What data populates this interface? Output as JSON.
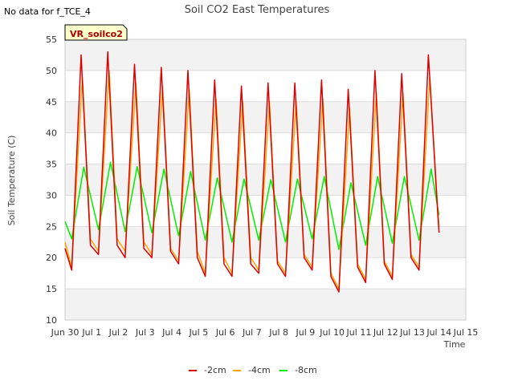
{
  "chart_data": {
    "type": "line",
    "title": "Soil CO2 East Temperatures",
    "corner_note": "No data for f_TCE_4",
    "station_label": "VR_soilco2",
    "xlabel": "Time",
    "ylabel": "Soil Temperature (C)",
    "xlim": [
      0,
      15
    ],
    "ylim": [
      10,
      55
    ],
    "x_ticks": [
      {
        "v": 0,
        "label": "Jun 30"
      },
      {
        "v": 1,
        "label": "Jul 1"
      },
      {
        "v": 2,
        "label": "Jul 2"
      },
      {
        "v": 3,
        "label": "Jul 3"
      },
      {
        "v": 4,
        "label": "Jul 4"
      },
      {
        "v": 5,
        "label": "Jul 5"
      },
      {
        "v": 6,
        "label": "Jul 6"
      },
      {
        "v": 7,
        "label": "Jul 7"
      },
      {
        "v": 8,
        "label": "Jul 8"
      },
      {
        "v": 9,
        "label": "Jul 9"
      },
      {
        "v": 10,
        "label": "Jul 10"
      },
      {
        "v": 11,
        "label": "Jul 11"
      },
      {
        "v": 12,
        "label": "Jul 12"
      },
      {
        "v": 13,
        "label": "Jul 13"
      },
      {
        "v": 14,
        "label": "Jul 14"
      },
      {
        "v": 15,
        "label": "Jul 15"
      }
    ],
    "y_ticks": [
      10,
      15,
      20,
      25,
      30,
      35,
      40,
      45,
      50,
      55
    ],
    "grid": true,
    "legend_position": "bottom",
    "series": [
      {
        "name": "-2cm",
        "color": "#dd0000",
        "x": [
          0.0,
          0.25,
          0.6,
          0.95,
          1.25,
          1.6,
          1.95,
          2.25,
          2.6,
          2.95,
          3.25,
          3.6,
          3.95,
          4.25,
          4.6,
          4.95,
          5.25,
          5.6,
          5.95,
          6.25,
          6.6,
          6.95,
          7.25,
          7.6,
          7.95,
          8.25,
          8.6,
          8.95,
          9.25,
          9.6,
          9.95,
          10.25,
          10.6,
          10.95,
          11.25,
          11.6,
          11.95,
          12.25,
          12.6,
          12.95,
          13.25,
          13.6,
          13.95,
          14.0
        ],
        "y": [
          21.5,
          18.0,
          52.5,
          22.0,
          20.5,
          53.0,
          22.0,
          20.0,
          51.0,
          21.5,
          20.0,
          50.5,
          21.0,
          19.0,
          50.0,
          20.0,
          17.0,
          48.5,
          19.0,
          17.0,
          47.5,
          19.0,
          17.5,
          48.0,
          19.0,
          17.0,
          48.0,
          20.0,
          18.0,
          48.5,
          17.0,
          14.5,
          47.0,
          18.5,
          16.0,
          50.0,
          19.0,
          16.5,
          49.5,
          20.0,
          18.0,
          52.5,
          27.0,
          24.0
        ]
      },
      {
        "name": "-4cm",
        "color": "#ffa500",
        "x": [
          0.0,
          0.25,
          0.65,
          0.95,
          1.25,
          1.65,
          1.95,
          2.25,
          2.65,
          2.95,
          3.25,
          3.65,
          3.95,
          4.25,
          4.65,
          4.95,
          5.25,
          5.65,
          5.95,
          6.25,
          6.65,
          6.95,
          7.25,
          7.65,
          7.95,
          8.25,
          8.65,
          8.95,
          9.25,
          9.65,
          9.95,
          10.25,
          10.65,
          10.95,
          11.25,
          11.65,
          11.95,
          12.25,
          12.65,
          12.95,
          13.25,
          13.65,
          13.95,
          14.0
        ],
        "y": [
          22.5,
          18.5,
          49.0,
          23.0,
          21.0,
          50.0,
          23.0,
          21.0,
          48.0,
          22.5,
          20.5,
          47.5,
          21.5,
          19.5,
          47.0,
          21.0,
          17.5,
          45.5,
          20.0,
          17.5,
          45.0,
          20.0,
          18.0,
          45.0,
          19.5,
          17.5,
          45.0,
          20.5,
          18.5,
          45.5,
          17.5,
          15.0,
          44.0,
          19.0,
          16.5,
          46.5,
          19.5,
          17.0,
          46.5,
          20.5,
          18.5,
          49.0,
          27.5,
          25.0
        ]
      },
      {
        "name": "-8cm",
        "color": "#00ee00",
        "x": [
          0.0,
          0.25,
          0.7,
          1.25,
          1.7,
          2.25,
          2.7,
          3.25,
          3.7,
          4.25,
          4.7,
          5.25,
          5.7,
          6.25,
          6.7,
          7.25,
          7.7,
          8.25,
          8.7,
          9.25,
          9.7,
          10.25,
          10.7,
          11.25,
          11.7,
          12.25,
          12.7,
          13.25,
          13.7,
          14.0
        ],
        "y": [
          25.8,
          23.0,
          34.5,
          24.5,
          35.3,
          24.2,
          34.6,
          24.0,
          34.2,
          23.5,
          33.8,
          22.8,
          32.8,
          22.5,
          32.6,
          22.8,
          32.5,
          22.5,
          32.6,
          23.0,
          33.0,
          21.3,
          32.0,
          22.0,
          33.0,
          22.3,
          33.0,
          22.8,
          34.2,
          26.8
        ]
      }
    ]
  }
}
